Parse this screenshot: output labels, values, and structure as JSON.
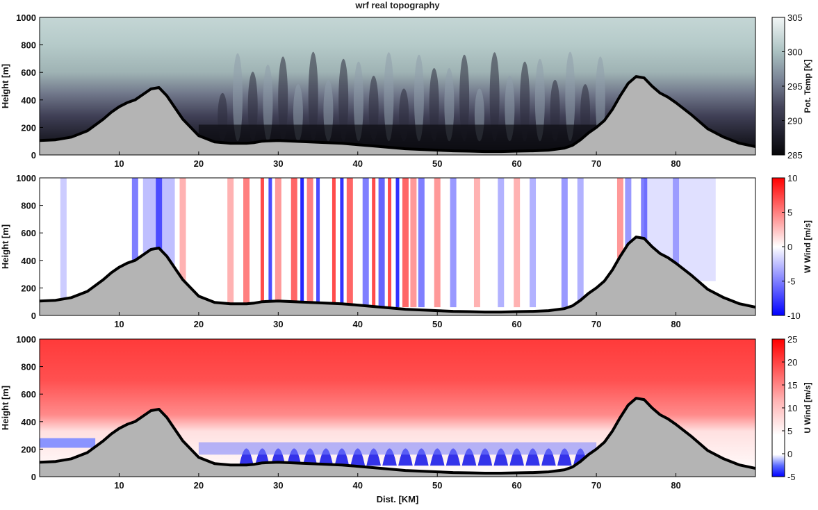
{
  "figure": {
    "title": "wrf real topography",
    "xlabel": "Dist. [KM]"
  },
  "topography": {
    "x_km": [
      0,
      2,
      4,
      6,
      8,
      9,
      10,
      11,
      12,
      13,
      14,
      15,
      16,
      18,
      20,
      22,
      24,
      26,
      27,
      28,
      30,
      32,
      34,
      36,
      38,
      40,
      42,
      44,
      46,
      48,
      50,
      52,
      54,
      56,
      58,
      60,
      62,
      64,
      66,
      67,
      68,
      69,
      70,
      71,
      72,
      73,
      74,
      75,
      76,
      77,
      78,
      79,
      80,
      82,
      84,
      86,
      88,
      90
    ],
    "height_m": [
      105,
      110,
      130,
      175,
      260,
      310,
      350,
      380,
      400,
      440,
      480,
      490,
      430,
      260,
      140,
      95,
      85,
      85,
      90,
      100,
      105,
      100,
      95,
      90,
      85,
      75,
      65,
      55,
      45,
      40,
      35,
      30,
      28,
      25,
      25,
      28,
      30,
      35,
      50,
      70,
      110,
      160,
      200,
      250,
      330,
      430,
      520,
      570,
      560,
      500,
      450,
      420,
      380,
      290,
      190,
      130,
      85,
      60
    ]
  },
  "chart_data": [
    {
      "type": "heatmap",
      "panel": "potential-temperature",
      "title": "wrf real topography",
      "xlabel": "",
      "ylabel": "Height [m]",
      "colorbar_label": "Pot. Temp [K]",
      "xlim": [
        0,
        90
      ],
      "ylim": [
        0,
        1000
      ],
      "x_ticks": [
        10,
        20,
        30,
        40,
        50,
        60,
        70,
        80
      ],
      "y_ticks": [
        0,
        200,
        400,
        600,
        800,
        1000
      ],
      "colorbar_range": [
        285,
        305
      ],
      "colorbar_ticks": [
        285,
        290,
        295,
        300,
        305
      ],
      "colormap": [
        "#060608",
        "#2a2a3a",
        "#55556e",
        "#8a93a4",
        "#b7cccb",
        "#eef4f4"
      ],
      "field_samples": {
        "near_surface_K": 286,
        "layer_200m_K": 291,
        "layer_600m_K": 298,
        "layer_1000m_K": 300.5
      },
      "grid": false,
      "legend": "colorbar-right"
    },
    {
      "type": "heatmap",
      "panel": "vertical-wind",
      "ylabel": "Height [m]",
      "colorbar_label": "W Wind [m/s]",
      "xlim": [
        0,
        90
      ],
      "ylim": [
        0,
        1000
      ],
      "x_ticks": [
        10,
        20,
        30,
        40,
        50,
        60,
        70,
        80
      ],
      "y_ticks": [
        0,
        200,
        400,
        600,
        800,
        1000
      ],
      "colorbar_range": [
        -10,
        10
      ],
      "colorbar_ticks": [
        10,
        5,
        0,
        -5,
        -10
      ],
      "colormap": [
        "#0000ff",
        "#ffffff",
        "#ff0000"
      ],
      "wave_columns_km": [
        3,
        12,
        15,
        18,
        24,
        26,
        28,
        29,
        30,
        32,
        33,
        34,
        35,
        37,
        38,
        39,
        41,
        42,
        43,
        44,
        45,
        46,
        47,
        48,
        50,
        52,
        55,
        58,
        60,
        62,
        66,
        68,
        73,
        74,
        76,
        80
      ],
      "wave_amplitudes_ms": [
        -1,
        -4,
        -5,
        2,
        2,
        4,
        6,
        -6,
        3,
        5,
        -8,
        4,
        -6,
        6,
        -7,
        5,
        -4,
        6,
        -5,
        6,
        -7,
        5,
        3,
        -4,
        3,
        -3,
        2,
        -2,
        2,
        -2,
        -3,
        -2,
        3,
        -3,
        -4,
        -2
      ],
      "grid": false,
      "legend": "colorbar-right"
    },
    {
      "type": "heatmap",
      "panel": "horizontal-wind",
      "ylabel": "Height [m]",
      "colorbar_label": "U Wind [m/s]",
      "xlim": [
        0,
        90
      ],
      "ylim": [
        0,
        1000
      ],
      "x_ticks": [
        10,
        20,
        30,
        40,
        50,
        60,
        70,
        80
      ],
      "y_ticks": [
        0,
        200,
        400,
        600,
        800,
        1000
      ],
      "colorbar_range": [
        -5,
        25
      ],
      "colorbar_ticks": [
        25,
        20,
        15,
        10,
        5,
        0,
        -5
      ],
      "colormap": [
        "#0000ff",
        "#ffffff",
        "#ff0000"
      ],
      "field_samples": {
        "upper_layer_ms": 17,
        "shear_layer_ms": 5,
        "valley_flow_ms": -3
      },
      "grid": false,
      "legend": "colorbar-right"
    }
  ]
}
